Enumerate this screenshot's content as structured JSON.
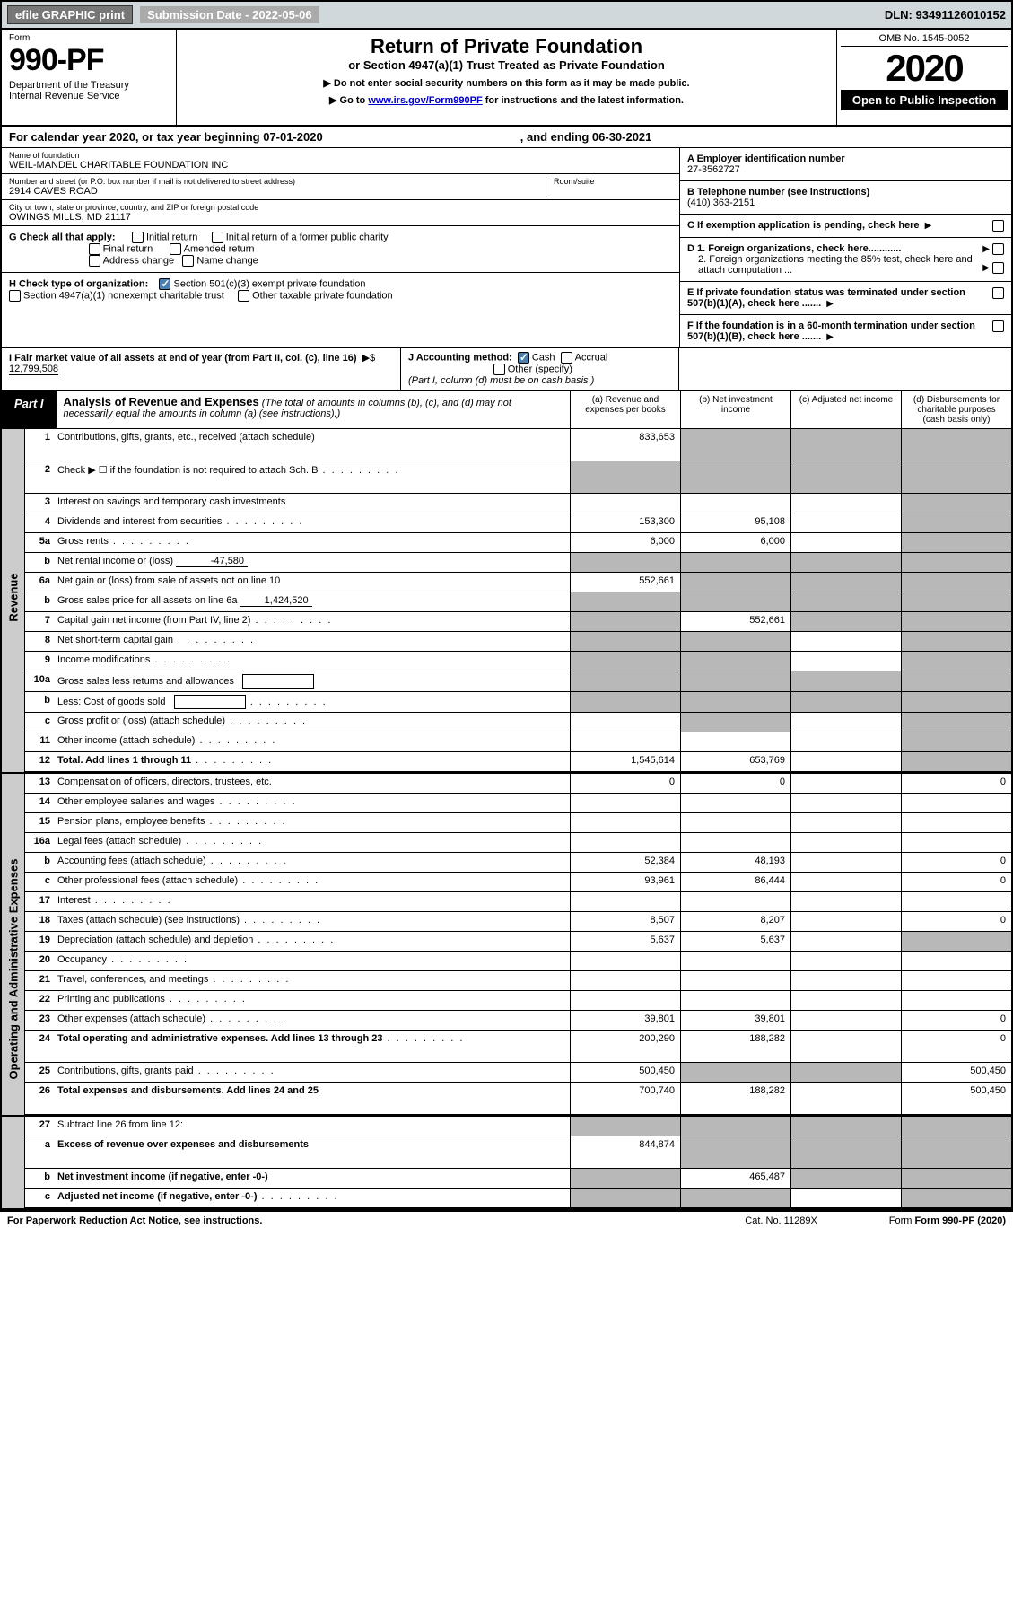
{
  "topbar": {
    "efile": "efile GRAPHIC print",
    "submission": "Submission Date - 2022-05-06",
    "dln": "DLN: 93491126010152"
  },
  "header": {
    "form_label": "Form",
    "form_num": "990-PF",
    "dept": "Department of the Treasury\nInternal Revenue Service",
    "title": "Return of Private Foundation",
    "subtitle": "or Section 4947(a)(1) Trust Treated as Private Foundation",
    "note1": "▶ Do not enter social security numbers on this form as it may be made public.",
    "note2_pre": "▶ Go to ",
    "note2_link": "www.irs.gov/Form990PF",
    "note2_post": " for instructions and the latest information.",
    "omb": "OMB No. 1545-0052",
    "year": "2020",
    "open": "Open to Public Inspection"
  },
  "calyear": {
    "text": "For calendar year 2020, or tax year beginning 07-01-2020",
    "ending": ", and ending 06-30-2021"
  },
  "foundation": {
    "name_label": "Name of foundation",
    "name": "WEIL-MANDEL CHARITABLE FOUNDATION INC",
    "addr_label": "Number and street (or P.O. box number if mail is not delivered to street address)",
    "addr": "2914 CAVES ROAD",
    "room_label": "Room/suite",
    "city_label": "City or town, state or province, country, and ZIP or foreign postal code",
    "city": "OWINGS MILLS, MD  21117",
    "ein_label": "A Employer identification number",
    "ein": "27-3562727",
    "tel_label": "B Telephone number (see instructions)",
    "tel": "(410) 363-2151",
    "c_label": "C If exemption application is pending, check here"
  },
  "checks": {
    "g_label": "G Check all that apply:",
    "g_items": [
      "Initial return",
      "Initial return of a former public charity",
      "Final return",
      "Amended return",
      "Address change",
      "Name change"
    ],
    "h_label": "H Check type of organization:",
    "h_501c3": "Section 501(c)(3) exempt private foundation",
    "h_4947": "Section 4947(a)(1) nonexempt charitable trust",
    "h_other": "Other taxable private foundation",
    "i_label": "I Fair market value of all assets at end of year (from Part II, col. (c), line 16)",
    "i_val": "12,799,508",
    "j_label": "J Accounting method:",
    "j_cash": "Cash",
    "j_accrual": "Accrual",
    "j_other": "Other (specify)",
    "j_note": "(Part I, column (d) must be on cash basis.)",
    "d1": "D 1. Foreign organizations, check here............",
    "d2": "2. Foreign organizations meeting the 85% test, check here and attach computation ...",
    "e": "E  If private foundation status was terminated under section 507(b)(1)(A), check here .......",
    "f": "F  If the foundation is in a 60-month termination under section 507(b)(1)(B), check here .......",
    "dollar": "▶$  "
  },
  "part1": {
    "badge": "Part I",
    "title": "Analysis of Revenue and Expenses",
    "title_note": " (The total of amounts in columns (b), (c), and (d) may not necessarily equal the amounts in column (a) (see instructions).)",
    "col_a": "(a)   Revenue and expenses per books",
    "col_b": "(b)   Net investment income",
    "col_c": "(c)   Adjusted net income",
    "col_d": "(d)   Disbursements for charitable purposes (cash basis only)"
  },
  "side_labels": {
    "revenue": "Revenue",
    "expenses": "Operating and Administrative Expenses"
  },
  "rows": [
    {
      "n": "1",
      "d": "Contributions, gifts, grants, etc., received (attach schedule)",
      "a": "833,653",
      "b": "s",
      "c": "s",
      "dd": "s",
      "tall": true
    },
    {
      "n": "2",
      "d": "Check ▶ ☐ if the foundation is not required to attach Sch. B",
      "a": "s",
      "b": "s",
      "c": "s",
      "dd": "s",
      "dots": true,
      "tall": true
    },
    {
      "n": "3",
      "d": "Interest on savings and temporary cash investments",
      "a": "",
      "b": "",
      "c": "",
      "dd": "s"
    },
    {
      "n": "4",
      "d": "Dividends and interest from securities",
      "a": "153,300",
      "b": "95,108",
      "c": "",
      "dd": "s",
      "dots": true
    },
    {
      "n": "5a",
      "d": "Gross rents",
      "a": "6,000",
      "b": "6,000",
      "c": "",
      "dd": "s",
      "dots": true
    },
    {
      "n": "b",
      "d": "Net rental income or (loss)",
      "inline": "-47,580",
      "a": "s",
      "b": "s",
      "c": "s",
      "dd": "s"
    },
    {
      "n": "6a",
      "d": "Net gain or (loss) from sale of assets not on line 10",
      "a": "552,661",
      "b": "s",
      "c": "s",
      "dd": "s"
    },
    {
      "n": "b",
      "d": "Gross sales price for all assets on line 6a",
      "inline": "1,424,520",
      "a": "s",
      "b": "s",
      "c": "s",
      "dd": "s"
    },
    {
      "n": "7",
      "d": "Capital gain net income (from Part IV, line 2)",
      "a": "s",
      "b": "552,661",
      "c": "s",
      "dd": "s",
      "dots": true
    },
    {
      "n": "8",
      "d": "Net short-term capital gain",
      "a": "s",
      "b": "s",
      "c": "",
      "dd": "s",
      "dots": true
    },
    {
      "n": "9",
      "d": "Income modifications",
      "a": "s",
      "b": "s",
      "c": "",
      "dd": "s",
      "dots": true
    },
    {
      "n": "10a",
      "d": "Gross sales less returns and allowances",
      "box": true,
      "a": "s",
      "b": "s",
      "c": "s",
      "dd": "s"
    },
    {
      "n": "b",
      "d": "Less: Cost of goods sold",
      "box": true,
      "a": "s",
      "b": "s",
      "c": "s",
      "dd": "s",
      "dots": true
    },
    {
      "n": "c",
      "d": "Gross profit or (loss) (attach schedule)",
      "a": "",
      "b": "s",
      "c": "",
      "dd": "s",
      "dots": true
    },
    {
      "n": "11",
      "d": "Other income (attach schedule)",
      "a": "",
      "b": "",
      "c": "",
      "dd": "s",
      "dots": true
    },
    {
      "n": "12",
      "d": "Total. Add lines 1 through 11",
      "a": "1,545,614",
      "b": "653,769",
      "c": "",
      "dd": "s",
      "bold": true,
      "dots": true
    }
  ],
  "exp_rows": [
    {
      "n": "13",
      "d": "Compensation of officers, directors, trustees, etc.",
      "a": "0",
      "b": "0",
      "c": "",
      "dd": "0"
    },
    {
      "n": "14",
      "d": "Other employee salaries and wages",
      "a": "",
      "b": "",
      "c": "",
      "dd": "",
      "dots": true
    },
    {
      "n": "15",
      "d": "Pension plans, employee benefits",
      "a": "",
      "b": "",
      "c": "",
      "dd": "",
      "dots": true
    },
    {
      "n": "16a",
      "d": "Legal fees (attach schedule)",
      "a": "",
      "b": "",
      "c": "",
      "dd": "",
      "dots": true
    },
    {
      "n": "b",
      "d": "Accounting fees (attach schedule)",
      "a": "52,384",
      "b": "48,193",
      "c": "",
      "dd": "0",
      "dots": true
    },
    {
      "n": "c",
      "d": "Other professional fees (attach schedule)",
      "a": "93,961",
      "b": "86,444",
      "c": "",
      "dd": "0",
      "dots": true
    },
    {
      "n": "17",
      "d": "Interest",
      "a": "",
      "b": "",
      "c": "",
      "dd": "",
      "dots": true
    },
    {
      "n": "18",
      "d": "Taxes (attach schedule) (see instructions)",
      "a": "8,507",
      "b": "8,207",
      "c": "",
      "dd": "0",
      "dots": true
    },
    {
      "n": "19",
      "d": "Depreciation (attach schedule) and depletion",
      "a": "5,637",
      "b": "5,637",
      "c": "",
      "dd": "s",
      "dots": true
    },
    {
      "n": "20",
      "d": "Occupancy",
      "a": "",
      "b": "",
      "c": "",
      "dd": "",
      "dots": true
    },
    {
      "n": "21",
      "d": "Travel, conferences, and meetings",
      "a": "",
      "b": "",
      "c": "",
      "dd": "",
      "dots": true
    },
    {
      "n": "22",
      "d": "Printing and publications",
      "a": "",
      "b": "",
      "c": "",
      "dd": "",
      "dots": true
    },
    {
      "n": "23",
      "d": "Other expenses (attach schedule)",
      "a": "39,801",
      "b": "39,801",
      "c": "",
      "dd": "0",
      "dots": true
    },
    {
      "n": "24",
      "d": "Total operating and administrative expenses. Add lines 13 through 23",
      "a": "200,290",
      "b": "188,282",
      "c": "",
      "dd": "0",
      "bold": true,
      "dots": true,
      "tall": true
    },
    {
      "n": "25",
      "d": "Contributions, gifts, grants paid",
      "a": "500,450",
      "b": "s",
      "c": "s",
      "dd": "500,450",
      "dots": true
    },
    {
      "n": "26",
      "d": "Total expenses and disbursements. Add lines 24 and 25",
      "a": "700,740",
      "b": "188,282",
      "c": "",
      "dd": "500,450",
      "bold": true,
      "tall": true
    }
  ],
  "net_rows": [
    {
      "n": "27",
      "d": "Subtract line 26 from line 12:",
      "a": "s",
      "b": "s",
      "c": "s",
      "dd": "s"
    },
    {
      "n": "a",
      "d": "Excess of revenue over expenses and disbursements",
      "a": "844,874",
      "b": "s",
      "c": "s",
      "dd": "s",
      "bold": true,
      "tall": true
    },
    {
      "n": "b",
      "d": "Net investment income (if negative, enter -0-)",
      "a": "s",
      "b": "465,487",
      "c": "s",
      "dd": "s",
      "bold": true
    },
    {
      "n": "c",
      "d": "Adjusted net income (if negative, enter -0-)",
      "a": "s",
      "b": "s",
      "c": "",
      "dd": "s",
      "bold": true,
      "dots": true
    }
  ],
  "footer": {
    "left": "For Paperwork Reduction Act Notice, see instructions.",
    "cat": "Cat. No. 11289X",
    "right": "Form 990-PF (2020)"
  }
}
